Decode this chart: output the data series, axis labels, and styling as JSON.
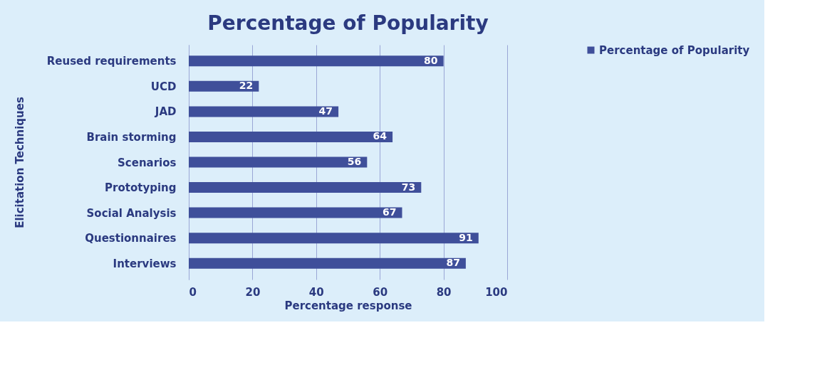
{
  "chart_data": {
    "type": "bar",
    "orientation": "horizontal",
    "title": "Percentage of Popularity",
    "xlabel": "Percentage response",
    "ylabel": "Elicitation Techniques",
    "categories": [
      "Reused requirements",
      "UCD",
      "JAD",
      "Brain storming",
      "Scenarios",
      "Prototyping",
      "Social Analysis",
      "Questionnaires",
      "Interviews"
    ],
    "series": [
      {
        "name": "Percentage of Popularity",
        "color": "#3f4f9a",
        "values": [
          80,
          22,
          47,
          64,
          56,
          73,
          67,
          91,
          87
        ]
      }
    ],
    "xlim": [
      0,
      100
    ],
    "xticks": [
      0,
      20,
      40,
      60,
      80,
      100
    ],
    "grid": "x",
    "legend": "right",
    "data_labels": true
  }
}
